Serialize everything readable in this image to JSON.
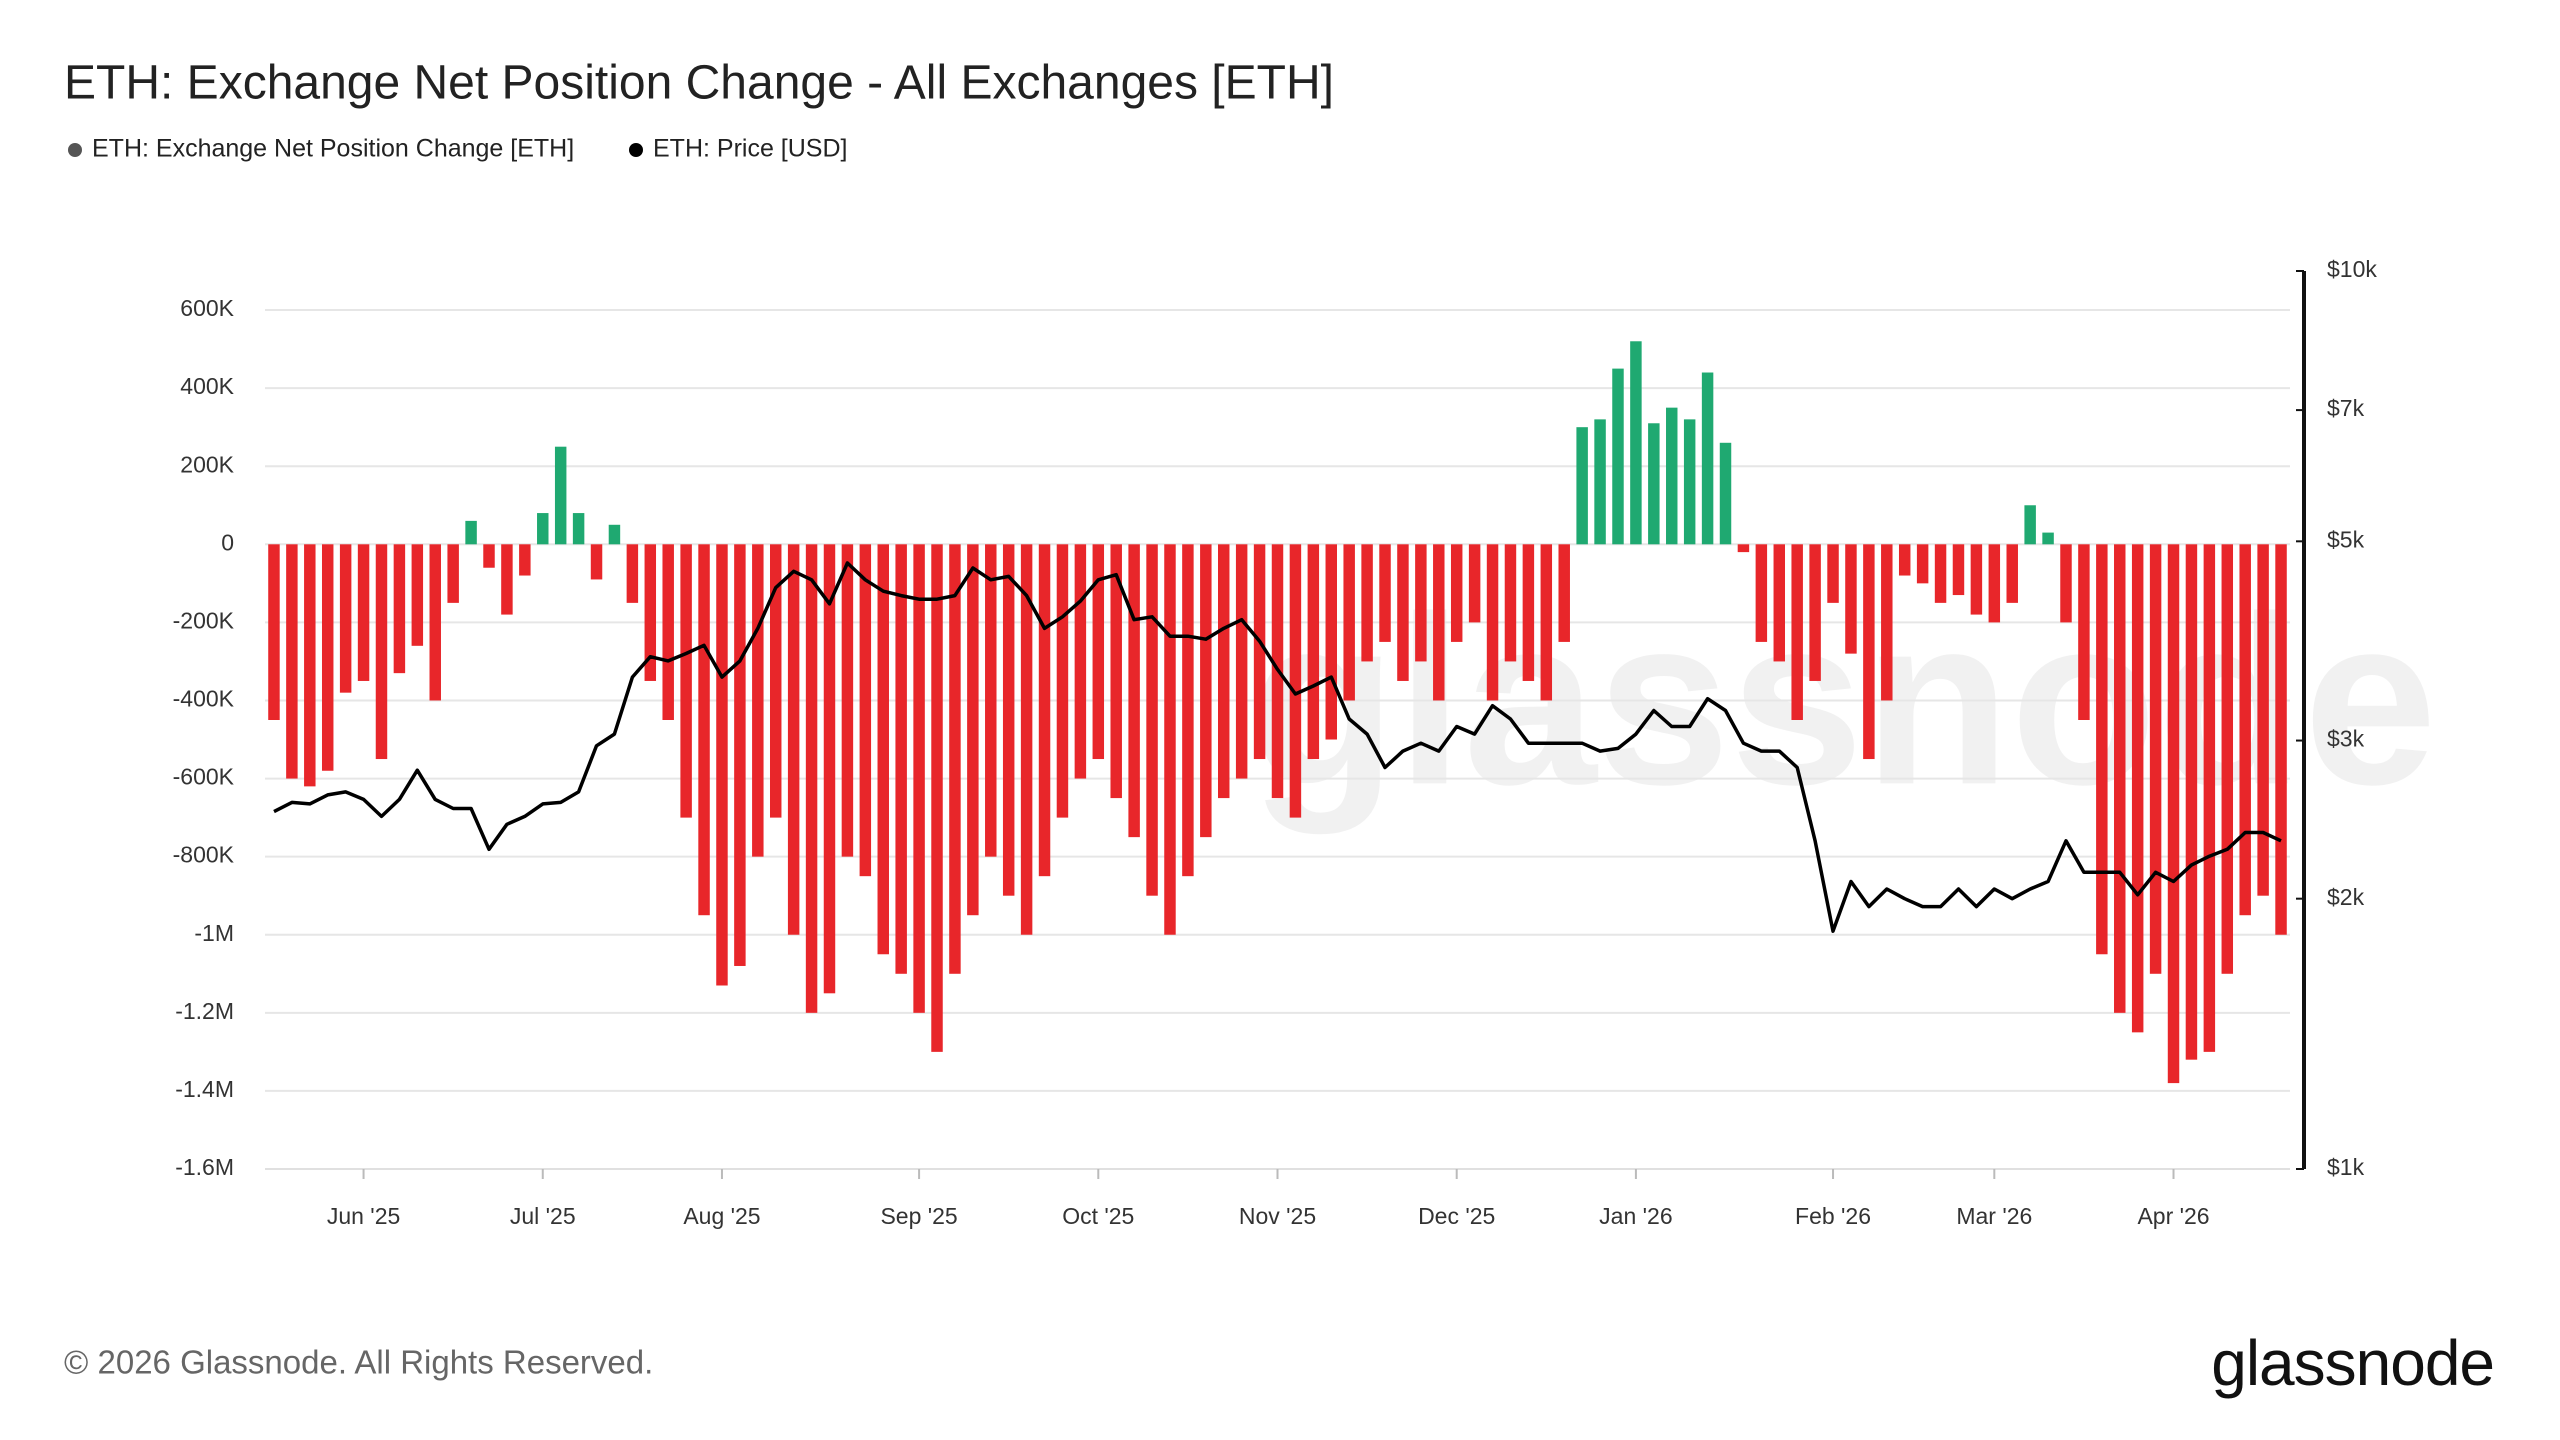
{
  "chart_data": {
    "type": "bar",
    "title": "ETH: Exchange Net Position Change - All Exchanges [ETH]",
    "copyright": "© 2026 Glassnode. All Rights Reserved.",
    "brand": "glassnode",
    "categories": [
      null,
      null,
      null,
      null,
      null,
      "Jun '25",
      null,
      null,
      null,
      null,
      null,
      null,
      null,
      null,
      null,
      "Jul '25",
      null,
      null,
      null,
      null,
      null,
      null,
      null,
      null,
      null,
      "Aug '25",
      null,
      null,
      null,
      null,
      null,
      null,
      null,
      null,
      null,
      null,
      "Sep '25",
      null,
      null,
      null,
      null,
      null,
      null,
      null,
      null,
      null,
      "Oct '25",
      null,
      null,
      null,
      null,
      null,
      null,
      null,
      null,
      null,
      "Nov '25",
      null,
      null,
      null,
      null,
      null,
      null,
      null,
      null,
      null,
      "Dec '25",
      null,
      null,
      null,
      null,
      null,
      null,
      null,
      null,
      null,
      "Jan '26",
      null,
      null,
      null,
      null,
      null,
      null,
      null,
      null,
      null,
      null,
      "Feb '26",
      null,
      null,
      null,
      null,
      null,
      null,
      null,
      null,
      "Mar '26",
      null,
      null,
      null,
      null,
      null,
      null,
      null,
      null,
      null,
      "Apr '26",
      null,
      null,
      null,
      null,
      null,
      null
    ],
    "series": [
      {
        "name": "ETH: Exchange Net Position Change [ETH]",
        "type": "bar",
        "color": "#1fa971",
        "negative_color": "#e8262a",
        "values": [
          -450000,
          -600000,
          -620000,
          -580000,
          -380000,
          -350000,
          -550000,
          -330000,
          -260000,
          -400000,
          -150000,
          60000,
          -60000,
          -180000,
          -80000,
          80000,
          250000,
          80000,
          -90000,
          50000,
          -150000,
          -350000,
          -450000,
          -700000,
          -950000,
          -1130000,
          -1080000,
          -800000,
          -700000,
          -1000000,
          -1200000,
          -1150000,
          -800000,
          -850000,
          -1050000,
          -1100000,
          -1200000,
          -1300000,
          -1100000,
          -950000,
          -800000,
          -900000,
          -1000000,
          -850000,
          -700000,
          -600000,
          -550000,
          -650000,
          -750000,
          -900000,
          -1000000,
          -850000,
          -750000,
          -650000,
          -600000,
          -550000,
          -650000,
          -700000,
          -550000,
          -500000,
          -400000,
          -300000,
          -250000,
          -350000,
          -300000,
          -400000,
          -250000,
          -200000,
          -400000,
          -300000,
          -350000,
          -400000,
          -250000,
          300000,
          320000,
          450000,
          520000,
          310000,
          350000,
          320000,
          440000,
          260000,
          -20000,
          -250000,
          -300000,
          -450000,
          -350000,
          -150000,
          -280000,
          -550000,
          -400000,
          -80000,
          -100000,
          -150000,
          -130000,
          -180000,
          -200000,
          -150000,
          100000,
          30000,
          -200000,
          -450000,
          -1050000,
          -1200000,
          -1250000,
          -1100000,
          -1380000,
          -1320000,
          -1300000,
          -1100000,
          -950000,
          -900000,
          -1000000
        ]
      },
      {
        "name": "ETH: Price [USD]",
        "type": "line",
        "axis": "y2",
        "color": "#000000",
        "values": [
          2500,
          2560,
          2550,
          2610,
          2630,
          2580,
          2470,
          2580,
          2780,
          2580,
          2520,
          2520,
          2270,
          2420,
          2470,
          2550,
          2560,
          2630,
          2960,
          3050,
          3530,
          3720,
          3680,
          3750,
          3830,
          3530,
          3680,
          4000,
          4440,
          4630,
          4530,
          4260,
          4730,
          4530,
          4400,
          4350,
          4310,
          4310,
          4350,
          4670,
          4530,
          4570,
          4350,
          4000,
          4120,
          4290,
          4530,
          4590,
          4090,
          4120,
          3920,
          3920,
          3890,
          4000,
          4090,
          3870,
          3600,
          3380,
          3450,
          3530,
          3170,
          3050,
          2800,
          2920,
          2980,
          2920,
          3110,
          3050,
          3280,
          3170,
          2980,
          2980,
          2980,
          2980,
          2920,
          2940,
          3050,
          3240,
          3110,
          3110,
          3340,
          3240,
          2980,
          2920,
          2920,
          2800,
          2320,
          1840,
          2090,
          1960,
          2050,
          2000,
          1960,
          1960,
          2050,
          1960,
          2050,
          2000,
          2050,
          2090,
          2320,
          2140,
          2140,
          2140,
          2020,
          2140,
          2090,
          2180,
          2230,
          2270,
          2370,
          2370,
          2320
        ]
      }
    ],
    "ylim": [
      -1600000,
      700000
    ],
    "yticks": [
      {
        "value": 600000,
        "label": "600K"
      },
      {
        "value": 400000,
        "label": "400K"
      },
      {
        "value": 200000,
        "label": "200K"
      },
      0,
      {
        "value": -200000,
        "label": "-200K"
      },
      {
        "value": -400000,
        "label": "-400K"
      },
      {
        "value": -600000,
        "label": "-600K"
      },
      {
        "value": -800000,
        "label": "-800K"
      },
      {
        "value": -1000000,
        "label": "-1M"
      },
      {
        "value": -1200000,
        "label": "-1.2M"
      },
      {
        "value": -1400000,
        "label": "-1.4M"
      },
      {
        "value": -1600000,
        "label": "-1.6M"
      }
    ],
    "y2lim": [
      1000,
      10000
    ],
    "y2_log": true,
    "y2ticks": [
      {
        "value": 1000,
        "label": "$1k"
      },
      {
        "value": 2000,
        "label": "$2k"
      },
      {
        "value": 3000,
        "label": "$3k"
      },
      {
        "value": 5000,
        "label": "$5k"
      },
      {
        "value": 7000,
        "label": "$7k"
      },
      {
        "value": 10000,
        "label": "$10k"
      }
    ],
    "grid": true
  }
}
